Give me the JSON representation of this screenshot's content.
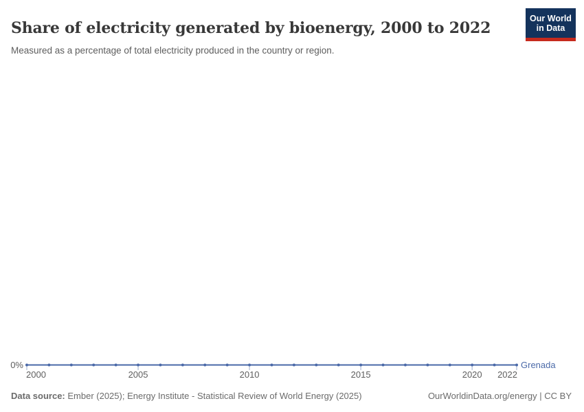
{
  "header": {
    "title": "Share of electricity generated by bioenergy, 2000 to 2022",
    "subtitle": "Measured as a percentage of total electricity produced in the country or region.",
    "logo": {
      "line1": "Our World",
      "line2": "in Data",
      "bg_color": "#14335c",
      "accent_color": "#c62a1d"
    }
  },
  "chart_data": {
    "type": "line",
    "title": "Share of electricity generated by bioenergy, 2000 to 2022",
    "xlabel": "",
    "ylabel": "",
    "xlim": [
      2000,
      2022
    ],
    "grid": false,
    "legend_position": "end-of-line",
    "x": [
      2000,
      2001,
      2002,
      2003,
      2004,
      2005,
      2006,
      2007,
      2008,
      2009,
      2010,
      2011,
      2012,
      2013,
      2014,
      2015,
      2016,
      2017,
      2018,
      2019,
      2020,
      2021,
      2022
    ],
    "series": [
      {
        "name": "Grenada",
        "color": "#4a69a8",
        "values": [
          0,
          0,
          0,
          0,
          0,
          0,
          0,
          0,
          0,
          0,
          0,
          0,
          0,
          0,
          0,
          0,
          0,
          0,
          0,
          0,
          0,
          0,
          0
        ]
      }
    ],
    "x_ticks": [
      2000,
      2005,
      2010,
      2015,
      2020,
      2022
    ],
    "y_tick_label": "0%",
    "tick_mark_color": "#aebbd6"
  },
  "footer": {
    "source_label": "Data source:",
    "source_text": " Ember (2025); Energy Institute - Statistical Review of World Energy (2025)",
    "rights": "OurWorldinData.org/energy | CC BY"
  }
}
